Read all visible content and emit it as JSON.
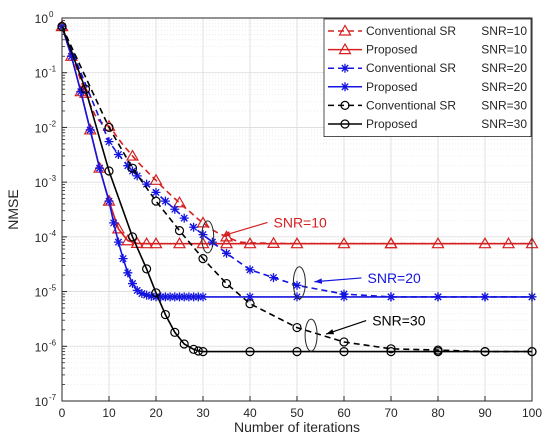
{
  "chart_data": {
    "type": "line",
    "xlabel": "Number of iterations",
    "ylabel": "NMSE",
    "xlim": [
      0,
      100
    ],
    "ylim": [
      1e-07,
      1
    ],
    "y_scale": "log",
    "grid": true,
    "minor_grid": true,
    "legend_position": "top-right",
    "x_ticks": [
      0,
      10,
      20,
      30,
      40,
      50,
      60,
      70,
      80,
      90,
      100
    ],
    "x_tick_labels": [
      "0",
      "10",
      "20",
      "30",
      "40",
      "50",
      "60",
      "70",
      "80",
      "90",
      "100"
    ],
    "y_ticks": [
      1e-07,
      1e-06,
      1e-05,
      0.0001,
      0.001,
      0.01,
      0.1,
      1
    ],
    "y_tick_exponents": [
      "-7",
      "-6",
      "-5",
      "-4",
      "-3",
      "-2",
      "-1",
      "0"
    ],
    "y_tick_base": "10",
    "series": [
      {
        "legend_method": "Conventional SR",
        "legend_snr": "SNR=10",
        "color": "#d62020",
        "marker": "triangle",
        "dash": true,
        "marker_every": 5,
        "x": [
          0,
          1,
          2,
          3,
          4,
          5,
          6,
          7,
          8,
          9,
          10,
          11,
          12,
          13,
          14,
          15,
          16,
          17,
          18,
          19,
          20,
          21,
          22,
          23,
          24,
          25,
          26,
          27,
          28,
          29,
          30,
          31,
          32,
          33,
          34,
          35,
          36,
          37,
          38,
          40,
          45,
          50,
          55,
          60,
          65,
          70,
          75,
          80,
          85,
          90,
          95,
          100
        ],
        "y": [
          0.7,
          0.42,
          0.24,
          0.13,
          0.072,
          0.042,
          0.026,
          0.017,
          0.013,
          0.0115,
          0.0105,
          0.0082,
          0.0062,
          0.0048,
          0.0038,
          0.003,
          0.0024,
          0.00195,
          0.0016,
          0.0013,
          0.00108,
          0.00088,
          0.00072,
          0.0006,
          0.0005,
          0.00042,
          0.00035,
          0.0003,
          0.00025,
          0.00021,
          0.00018,
          0.000155,
          0.000135,
          0.00012,
          0.00011,
          0.0001,
          9.2e-05,
          8.5e-05,
          8e-05,
          7.8e-05,
          7.6e-05,
          7.5e-05,
          7.5e-05,
          7.5e-05,
          7.5e-05,
          7.5e-05,
          7.5e-05,
          7.5e-05,
          7.5e-05,
          7.5e-05,
          7.5e-05,
          7.5e-05
        ]
      },
      {
        "legend_method": "Proposed",
        "legend_snr": "SNR=10",
        "color": "#d62020",
        "marker": "triangle",
        "dash": false,
        "marker_every": 1,
        "x": [
          0,
          2,
          4,
          6,
          8,
          10,
          12,
          14,
          16,
          18,
          20,
          25,
          30,
          35,
          40,
          50,
          60,
          70,
          80,
          90,
          100
        ],
        "y": [
          0.7,
          0.2,
          0.045,
          0.009,
          0.0018,
          0.00045,
          0.00014,
          8.5e-05,
          7.6e-05,
          7.5e-05,
          7.5e-05,
          7.5e-05,
          7.5e-05,
          7.5e-05,
          7.5e-05,
          7.5e-05,
          7.5e-05,
          7.5e-05,
          7.5e-05,
          7.5e-05,
          7.5e-05
        ]
      },
      {
        "legend_method": "Conventional SR",
        "legend_snr": "SNR=20",
        "color": "#1515e0",
        "marker": "star",
        "dash": true,
        "marker_every": 1,
        "x": [
          0,
          10,
          12,
          14,
          15,
          16,
          18,
          20,
          22,
          24,
          26,
          28,
          30,
          32,
          35,
          40,
          45,
          50,
          60,
          70,
          80,
          90,
          100
        ],
        "y": [
          0.7,
          0.0055,
          0.0032,
          0.002,
          0.0016,
          0.0013,
          0.00092,
          0.00065,
          0.00045,
          0.00032,
          0.00022,
          0.00015,
          0.00011,
          8e-05,
          5e-05,
          2.5e-05,
          1.8e-05,
          1.3e-05,
          9e-06,
          8e-06,
          8e-06,
          8e-06,
          8e-06
        ]
      },
      {
        "legend_method": "Proposed",
        "legend_snr": "SNR=20",
        "color": "#1515e0",
        "marker": "star",
        "dash": false,
        "marker_every": 1,
        "x": [
          0,
          2,
          4,
          6,
          8,
          10,
          11,
          12,
          13,
          14,
          15,
          16,
          17,
          18,
          19,
          20,
          21,
          22,
          23,
          24,
          25,
          26,
          27,
          28,
          29,
          30,
          40,
          50,
          60,
          70,
          80,
          90,
          100
        ],
        "y": [
          0.7,
          0.2,
          0.045,
          0.009,
          0.0018,
          0.00045,
          0.00018,
          8e-05,
          4e-05,
          2.2e-05,
          1.4e-05,
          1.05e-05,
          9.2e-06,
          8.6e-06,
          8.2e-06,
          8e-06,
          8e-06,
          8e-06,
          8e-06,
          8e-06,
          8e-06,
          8e-06,
          8e-06,
          8e-06,
          8e-06,
          8e-06,
          8e-06,
          8e-06,
          8e-06,
          8e-06,
          8e-06,
          8e-06,
          8e-06
        ]
      },
      {
        "legend_method": "Conventional SR",
        "legend_snr": "SNR=30",
        "color": "#000000",
        "marker": "circle",
        "dash": true,
        "marker_every": 1,
        "x": [
          0,
          10,
          15,
          20,
          25,
          30,
          35,
          40,
          50,
          60,
          70,
          80,
          90,
          100
        ],
        "y": [
          0.7,
          0.01,
          0.0018,
          0.00045,
          0.00013,
          4e-05,
          1.4e-05,
          6e-06,
          2.2e-06,
          1.2e-06,
          9e-07,
          8.5e-07,
          8e-07,
          8e-07
        ]
      },
      {
        "legend_method": "Proposed",
        "legend_snr": "SNR=30",
        "color": "#000000",
        "marker": "circle",
        "dash": false,
        "marker_every": 1,
        "x": [
          0,
          5,
          10,
          15,
          18,
          20,
          22,
          24,
          26,
          28,
          29,
          30,
          40,
          50,
          60,
          70,
          80,
          90,
          100
        ],
        "y": [
          0.7,
          0.05,
          0.0016,
          0.0001,
          2.6e-05,
          9.5e-06,
          3.8e-06,
          1.8e-06,
          1.1e-06,
          8.8e-07,
          8.2e-07,
          8e-07,
          8e-07,
          8e-07,
          8e-07,
          8e-07,
          8e-07,
          8e-07,
          8e-07
        ]
      }
    ],
    "annotations": [
      {
        "text": "SNR=10",
        "color": "#d62020",
        "x": 33,
        "y": 8.5e-05,
        "ellipse_x": 31,
        "ellipse_y": 0.0001,
        "label_x": 45,
        "label_y": 0.000155
      },
      {
        "text": "SNR=20",
        "color": "#1515e0",
        "x": 53,
        "y": 1.4e-05,
        "ellipse_x": 50.5,
        "ellipse_y": 1.45e-05,
        "label_x": 65,
        "label_y": 1.5e-05
      },
      {
        "text": "SNR=30",
        "color": "#000000",
        "x": 55,
        "y": 1.6e-06,
        "ellipse_x": 53,
        "ellipse_y": 1.6e-06,
        "label_x": 66,
        "label_y": 2.5e-06
      }
    ]
  }
}
